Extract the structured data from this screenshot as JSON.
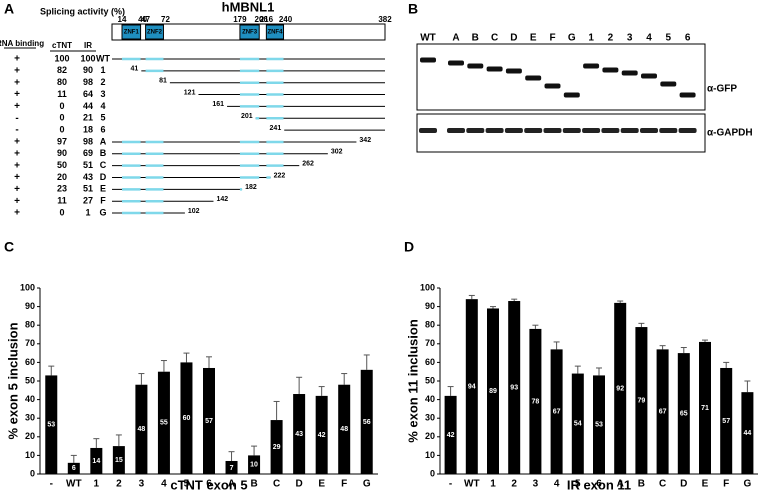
{
  "panel_a": {
    "label": "A",
    "title": "hMBNL1",
    "header_activity": "Splicing activity (%)",
    "header_binding": "RNA binding",
    "header_ctnt": "cTNT",
    "header_ir": "IR",
    "length": 382,
    "domains": [
      {
        "name": "ZNF1",
        "start": 14,
        "end": 40
      },
      {
        "name": "ZNF2",
        "start": 47,
        "end": 72
      },
      {
        "name": "ZNF3",
        "start": 179,
        "end": 206
      },
      {
        "name": "ZNF4",
        "start": 216,
        "end": 240
      }
    ],
    "rows": [
      {
        "binding": "+",
        "ctnt": 100,
        "ir": 100,
        "name": "WT"
      },
      {
        "binding": "+",
        "ctnt": 82,
        "ir": 90,
        "name": "1",
        "start": 41
      },
      {
        "binding": "+",
        "ctnt": 80,
        "ir": 98,
        "name": "2",
        "start": 81
      },
      {
        "binding": "+",
        "ctnt": 11,
        "ir": 64,
        "name": "3",
        "start": 121
      },
      {
        "binding": "+",
        "ctnt": 0,
        "ir": 44,
        "name": "4",
        "start": 161
      },
      {
        "binding": "-",
        "ctnt": 0,
        "ir": 21,
        "name": "5",
        "start": 201
      },
      {
        "binding": "-",
        "ctnt": 0,
        "ir": 18,
        "name": "6",
        "start": 241
      },
      {
        "binding": "+",
        "ctnt": 97,
        "ir": 98,
        "name": "A",
        "end": 342
      },
      {
        "binding": "+",
        "ctnt": 90,
        "ir": 69,
        "name": "B",
        "end": 302
      },
      {
        "binding": "+",
        "ctnt": 50,
        "ir": 51,
        "name": "C",
        "end": 262
      },
      {
        "binding": "+",
        "ctnt": 20,
        "ir": 43,
        "name": "D",
        "end": 222
      },
      {
        "binding": "+",
        "ctnt": 23,
        "ir": 51,
        "name": "E",
        "end": 182
      },
      {
        "binding": "+",
        "ctnt": 11,
        "ir": 27,
        "name": "F",
        "end": 142
      },
      {
        "binding": "+",
        "ctnt": 0,
        "ir": 1,
        "name": "G",
        "end": 102
      }
    ]
  },
  "panel_b": {
    "label": "B",
    "lanes": [
      "WT",
      "A",
      "B",
      "C",
      "D",
      "E",
      "F",
      "G",
      "1",
      "2",
      "3",
      "4",
      "5",
      "6"
    ],
    "antibodies": [
      "α-GFP",
      "α-GAPDH"
    ]
  },
  "chart_data": [
    {
      "type": "bar",
      "panel_label": "C",
      "xlabel": "cTNT exon 5",
      "ylabel": "% exon 5 inclusion",
      "categories": [
        "-",
        "WT",
        "1",
        "2",
        "3",
        "4",
        "5",
        "6",
        "A",
        "B",
        "C",
        "D",
        "E",
        "F",
        "G"
      ],
      "values": [
        53,
        6,
        14,
        15,
        48,
        55,
        60,
        57,
        7,
        10,
        29,
        43,
        42,
        48,
        56
      ],
      "errors": [
        5,
        4,
        5,
        6,
        6,
        6,
        5,
        6,
        5,
        5,
        10,
        9,
        5,
        6,
        8
      ],
      "color": "#000000",
      "ylim": [
        0,
        100
      ],
      "yticks": [
        0,
        10,
        20,
        30,
        40,
        50,
        60,
        70,
        80,
        90,
        100
      ]
    },
    {
      "type": "bar",
      "panel_label": "D",
      "xlabel": "IR exon 11",
      "ylabel": "% exon 11 inclusion",
      "categories": [
        "-",
        "WT",
        "1",
        "2",
        "3",
        "4",
        "5",
        "6",
        "A",
        "B",
        "C",
        "D",
        "E",
        "F",
        "G"
      ],
      "values": [
        42,
        94,
        89,
        93,
        78,
        67,
        54,
        53,
        92,
        79,
        67,
        65,
        71,
        57,
        44
      ],
      "errors": [
        5,
        2,
        1,
        1,
        2,
        4,
        4,
        4,
        1,
        2,
        2,
        3,
        1,
        3,
        6
      ],
      "color": "#000000",
      "ylim": [
        0,
        100
      ],
      "yticks": [
        0,
        10,
        20,
        30,
        40,
        50,
        60,
        70,
        80,
        90,
        100
      ]
    }
  ]
}
